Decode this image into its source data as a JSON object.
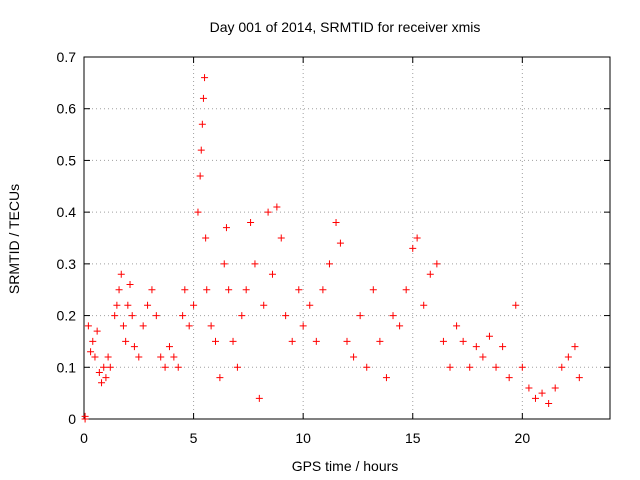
{
  "chart_data": {
    "type": "scatter",
    "title": "Day 001 of 2014, SRMTID for receiver xmis",
    "xlabel": "GPS time / hours",
    "ylabel": "SRMTID / TECUs",
    "xlim": [
      0,
      24
    ],
    "ylim": [
      0,
      0.7
    ],
    "xticks": [
      0,
      5,
      10,
      15,
      20
    ],
    "yticks": [
      0,
      0.1,
      0.2,
      0.3,
      0.4,
      0.5,
      0.6,
      0.7
    ],
    "xtick_labels": [
      "0",
      "5",
      "10",
      "15",
      "20"
    ],
    "ytick_labels": [
      "0",
      "0.1",
      "0.2",
      "0.3",
      "0.4",
      "0.5",
      "0.6",
      "0.7"
    ],
    "grid": true,
    "marker": "+",
    "color": "#ff0000",
    "series": [
      {
        "name": "SRMTID",
        "points": [
          [
            0.05,
            0.0
          ],
          [
            0.05,
            0.005
          ],
          [
            0.2,
            0.18
          ],
          [
            0.3,
            0.13
          ],
          [
            0.4,
            0.15
          ],
          [
            0.5,
            0.12
          ],
          [
            0.6,
            0.17
          ],
          [
            0.7,
            0.09
          ],
          [
            0.8,
            0.07
          ],
          [
            0.9,
            0.1
          ],
          [
            1.0,
            0.08
          ],
          [
            1.1,
            0.12
          ],
          [
            1.2,
            0.1
          ],
          [
            1.4,
            0.2
          ],
          [
            1.5,
            0.22
          ],
          [
            1.6,
            0.25
          ],
          [
            1.7,
            0.28
          ],
          [
            1.8,
            0.18
          ],
          [
            1.9,
            0.15
          ],
          [
            2.0,
            0.22
          ],
          [
            2.1,
            0.26
          ],
          [
            2.2,
            0.2
          ],
          [
            2.3,
            0.14
          ],
          [
            2.5,
            0.12
          ],
          [
            2.7,
            0.18
          ],
          [
            2.9,
            0.22
          ],
          [
            3.1,
            0.25
          ],
          [
            3.3,
            0.2
          ],
          [
            3.5,
            0.12
          ],
          [
            3.7,
            0.1
          ],
          [
            3.9,
            0.14
          ],
          [
            4.1,
            0.12
          ],
          [
            4.3,
            0.1
          ],
          [
            4.5,
            0.2
          ],
          [
            4.6,
            0.25
          ],
          [
            4.8,
            0.18
          ],
          [
            5.0,
            0.22
          ],
          [
            5.2,
            0.4
          ],
          [
            5.3,
            0.47
          ],
          [
            5.35,
            0.52
          ],
          [
            5.4,
            0.57
          ],
          [
            5.45,
            0.62
          ],
          [
            5.5,
            0.66
          ],
          [
            5.55,
            0.35
          ],
          [
            5.6,
            0.25
          ],
          [
            5.8,
            0.18
          ],
          [
            6.0,
            0.15
          ],
          [
            6.2,
            0.08
          ],
          [
            6.4,
            0.3
          ],
          [
            6.5,
            0.37
          ],
          [
            6.6,
            0.25
          ],
          [
            6.8,
            0.15
          ],
          [
            7.0,
            0.1
          ],
          [
            7.2,
            0.2
          ],
          [
            7.4,
            0.25
          ],
          [
            7.6,
            0.38
          ],
          [
            7.8,
            0.3
          ],
          [
            8.0,
            0.04
          ],
          [
            8.2,
            0.22
          ],
          [
            8.4,
            0.4
          ],
          [
            8.6,
            0.28
          ],
          [
            8.8,
            0.41
          ],
          [
            9.0,
            0.35
          ],
          [
            9.2,
            0.2
          ],
          [
            9.5,
            0.15
          ],
          [
            9.8,
            0.25
          ],
          [
            10.0,
            0.18
          ],
          [
            10.3,
            0.22
          ],
          [
            10.6,
            0.15
          ],
          [
            10.9,
            0.25
          ],
          [
            11.2,
            0.3
          ],
          [
            11.5,
            0.38
          ],
          [
            11.7,
            0.34
          ],
          [
            12.0,
            0.15
          ],
          [
            12.3,
            0.12
          ],
          [
            12.6,
            0.2
          ],
          [
            12.9,
            0.1
          ],
          [
            13.2,
            0.25
          ],
          [
            13.5,
            0.15
          ],
          [
            13.8,
            0.08
          ],
          [
            14.1,
            0.2
          ],
          [
            14.4,
            0.18
          ],
          [
            14.7,
            0.25
          ],
          [
            15.0,
            0.33
          ],
          [
            15.2,
            0.35
          ],
          [
            15.5,
            0.22
          ],
          [
            15.8,
            0.28
          ],
          [
            16.1,
            0.3
          ],
          [
            16.4,
            0.15
          ],
          [
            16.7,
            0.1
          ],
          [
            17.0,
            0.18
          ],
          [
            17.3,
            0.15
          ],
          [
            17.6,
            0.1
          ],
          [
            17.9,
            0.14
          ],
          [
            18.2,
            0.12
          ],
          [
            18.5,
            0.16
          ],
          [
            18.8,
            0.1
          ],
          [
            19.1,
            0.14
          ],
          [
            19.4,
            0.08
          ],
          [
            19.7,
            0.22
          ],
          [
            20.0,
            0.1
          ],
          [
            20.3,
            0.06
          ],
          [
            20.6,
            0.04
          ],
          [
            20.9,
            0.05
          ],
          [
            21.2,
            0.03
          ],
          [
            21.5,
            0.06
          ],
          [
            21.8,
            0.1
          ],
          [
            22.1,
            0.12
          ],
          [
            22.4,
            0.14
          ],
          [
            22.6,
            0.08
          ]
        ]
      }
    ]
  }
}
